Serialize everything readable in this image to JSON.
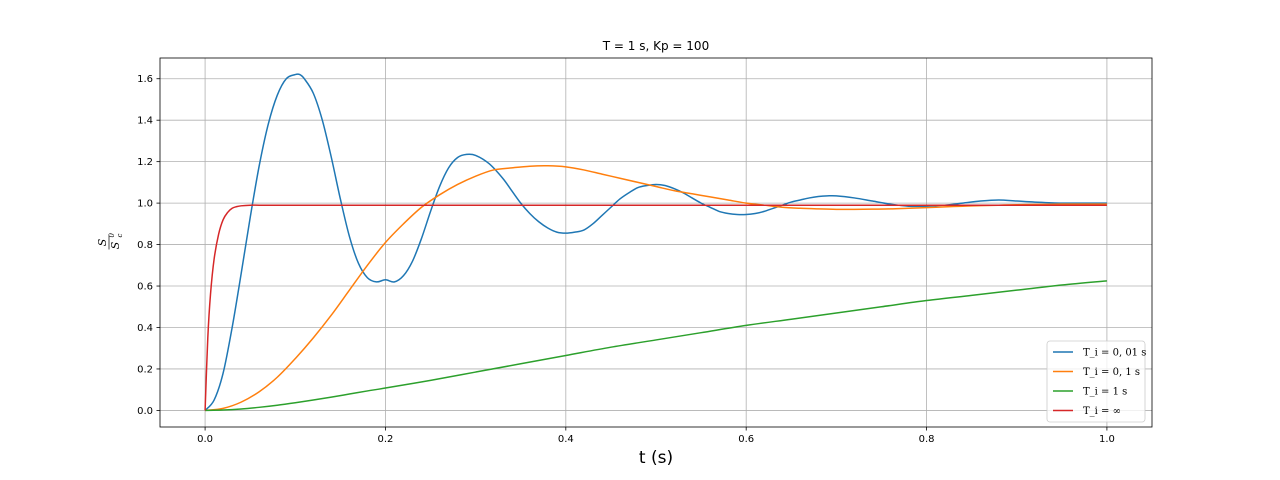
{
  "chart_data": {
    "type": "line",
    "title": "T = 1 s, Kp = 100",
    "xlabel": "t (s)",
    "ylabel": {
      "num": "S",
      "den_base": "S",
      "den_sub": "c",
      "den_sup": "0"
    },
    "xlim": [
      -0.05,
      1.05
    ],
    "ylim": [
      -0.08,
      1.7
    ],
    "xticks": [
      0.0,
      0.2,
      0.4,
      0.6,
      0.8,
      1.0
    ],
    "xtick_labels": [
      "0.0",
      "0.2",
      "0.4",
      "0.6",
      "0.8",
      "1.0"
    ],
    "yticks": [
      0.0,
      0.2,
      0.4,
      0.6,
      0.8,
      1.0,
      1.2,
      1.4,
      1.6
    ],
    "ytick_labels": [
      "0.0",
      "0.2",
      "0.4",
      "0.6",
      "0.8",
      "1.0",
      "1.2",
      "1.4",
      "1.6"
    ],
    "grid": true,
    "legend_position": "lower right",
    "series": [
      {
        "name": "T_i = 0,01 s",
        "legend_math": "T_i = 0, 01 s",
        "color": "#1f77b4",
        "x": [
          0,
          0.01,
          0.02,
          0.03,
          0.04,
          0.05,
          0.06,
          0.07,
          0.08,
          0.09,
          0.1,
          0.105,
          0.11,
          0.12,
          0.13,
          0.14,
          0.15,
          0.16,
          0.17,
          0.18,
          0.19,
          0.2,
          0.21,
          0.22,
          0.23,
          0.24,
          0.25,
          0.26,
          0.27,
          0.28,
          0.29,
          0.3,
          0.315,
          0.33,
          0.34,
          0.35,
          0.36,
          0.37,
          0.38,
          0.39,
          0.4,
          0.41,
          0.42,
          0.43,
          0.44,
          0.45,
          0.46,
          0.47,
          0.48,
          0.49,
          0.5,
          0.51,
          0.52,
          0.53,
          0.54,
          0.55,
          0.56,
          0.57,
          0.58,
          0.59,
          0.6,
          0.61,
          0.62,
          0.63,
          0.64,
          0.65,
          0.66,
          0.67,
          0.68,
          0.69,
          0.7,
          0.72,
          0.74,
          0.76,
          0.78,
          0.8,
          0.82,
          0.84,
          0.86,
          0.88,
          0.9,
          0.92,
          0.95,
          0.98,
          1.0
        ],
        "y": [
          0.0,
          0.05,
          0.18,
          0.4,
          0.66,
          0.93,
          1.18,
          1.38,
          1.52,
          1.6,
          1.62,
          1.62,
          1.6,
          1.53,
          1.4,
          1.22,
          1.02,
          0.84,
          0.71,
          0.64,
          0.62,
          0.63,
          0.62,
          0.65,
          0.72,
          0.83,
          0.96,
          1.08,
          1.17,
          1.22,
          1.235,
          1.23,
          1.19,
          1.12,
          1.06,
          1.0,
          0.95,
          0.91,
          0.88,
          0.86,
          0.855,
          0.86,
          0.87,
          0.9,
          0.94,
          0.98,
          1.02,
          1.05,
          1.075,
          1.085,
          1.09,
          1.085,
          1.07,
          1.05,
          1.025,
          1.0,
          0.98,
          0.96,
          0.95,
          0.945,
          0.945,
          0.95,
          0.96,
          0.975,
          0.99,
          1.005,
          1.015,
          1.025,
          1.032,
          1.035,
          1.035,
          1.025,
          1.01,
          0.995,
          0.985,
          0.985,
          0.99,
          1.0,
          1.01,
          1.015,
          1.01,
          1.005,
          1.0,
          1.0,
          1.0
        ]
      },
      {
        "name": "T_i = 0,1 s",
        "legend_math": "T_i = 0, 1 s",
        "color": "#ff7f0e",
        "x": [
          0,
          0.02,
          0.04,
          0.06,
          0.08,
          0.1,
          0.12,
          0.14,
          0.16,
          0.18,
          0.2,
          0.22,
          0.24,
          0.26,
          0.28,
          0.3,
          0.32,
          0.34,
          0.36,
          0.38,
          0.4,
          0.42,
          0.44,
          0.46,
          0.48,
          0.5,
          0.52,
          0.54,
          0.56,
          0.58,
          0.6,
          0.62,
          0.64,
          0.66,
          0.68,
          0.7,
          0.72,
          0.74,
          0.76,
          0.78,
          0.8,
          0.82,
          0.84,
          0.86,
          0.88,
          0.9,
          0.95,
          1.0
        ],
        "y": [
          0.0,
          0.01,
          0.04,
          0.09,
          0.16,
          0.25,
          0.35,
          0.46,
          0.58,
          0.7,
          0.81,
          0.9,
          0.98,
          1.04,
          1.09,
          1.13,
          1.16,
          1.17,
          1.178,
          1.18,
          1.175,
          1.16,
          1.14,
          1.12,
          1.1,
          1.08,
          1.06,
          1.045,
          1.03,
          1.015,
          1.0,
          0.99,
          0.98,
          0.975,
          0.972,
          0.97,
          0.97,
          0.971,
          0.972,
          0.975,
          0.978,
          0.982,
          0.985,
          0.988,
          0.99,
          0.992,
          0.995,
          0.995
        ]
      },
      {
        "name": "T_i = 1 s",
        "legend_math": "T_i = 1 s",
        "color": "#2ca02c",
        "x": [
          0,
          0.02,
          0.04,
          0.06,
          0.08,
          0.1,
          0.12,
          0.14,
          0.16,
          0.18,
          0.2,
          0.25,
          0.3,
          0.35,
          0.4,
          0.45,
          0.5,
          0.55,
          0.6,
          0.65,
          0.7,
          0.75,
          0.8,
          0.85,
          0.9,
          0.95,
          1.0
        ],
        "y": [
          0.0,
          0.002,
          0.007,
          0.015,
          0.025,
          0.037,
          0.05,
          0.064,
          0.079,
          0.094,
          0.108,
          0.145,
          0.185,
          0.225,
          0.265,
          0.305,
          0.34,
          0.375,
          0.41,
          0.44,
          0.47,
          0.5,
          0.53,
          0.555,
          0.58,
          0.605,
          0.625
        ]
      },
      {
        "name": "T_i = ∞",
        "legend_math": "T_i = ∞",
        "color": "#d62728",
        "x": [
          0,
          0.003,
          0.006,
          0.01,
          0.015,
          0.02,
          0.025,
          0.03,
          0.035,
          0.04,
          0.05,
          0.06,
          0.08,
          0.1,
          0.2,
          0.4,
          0.6,
          0.8,
          1.0
        ],
        "y": [
          0.0,
          0.35,
          0.56,
          0.73,
          0.85,
          0.92,
          0.955,
          0.975,
          0.983,
          0.987,
          0.99,
          0.99,
          0.99,
          0.99,
          0.99,
          0.99,
          0.99,
          0.99,
          0.99
        ]
      }
    ]
  }
}
